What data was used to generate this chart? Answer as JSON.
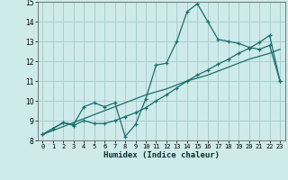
{
  "xlabel": "Humidex (Indice chaleur)",
  "background_color": "#ceeaea",
  "grid_color": "#aacece",
  "line_color": "#1a6e6a",
  "x_data": [
    0,
    1,
    2,
    3,
    4,
    5,
    6,
    7,
    8,
    9,
    10,
    11,
    12,
    13,
    14,
    15,
    16,
    17,
    18,
    19,
    20,
    21,
    22,
    23
  ],
  "line1_y": [
    8.3,
    8.6,
    8.9,
    8.8,
    9.7,
    9.9,
    9.7,
    9.9,
    8.2,
    8.8,
    10.1,
    11.8,
    11.9,
    13.0,
    14.5,
    14.9,
    14.0,
    13.1,
    13.0,
    12.9,
    12.7,
    12.6,
    12.8,
    11.0
  ],
  "line2_y": [
    8.3,
    8.6,
    8.9,
    8.75,
    9.0,
    8.85,
    8.85,
    9.0,
    9.2,
    9.4,
    9.65,
    10.0,
    10.3,
    10.65,
    11.0,
    11.3,
    11.55,
    11.85,
    12.1,
    12.4,
    12.65,
    12.95,
    13.3,
    11.0
  ],
  "line3_y": [
    8.3,
    8.5,
    8.7,
    8.9,
    9.1,
    9.3,
    9.5,
    9.7,
    9.9,
    10.1,
    10.3,
    10.45,
    10.6,
    10.8,
    11.0,
    11.15,
    11.3,
    11.5,
    11.7,
    11.9,
    12.1,
    12.25,
    12.4,
    12.6
  ],
  "ylim": [
    8,
    15
  ],
  "xlim": [
    -0.5,
    23.5
  ],
  "yticks": [
    8,
    9,
    10,
    11,
    12,
    13,
    14,
    15
  ],
  "xticks": [
    0,
    1,
    2,
    3,
    4,
    5,
    6,
    7,
    8,
    9,
    10,
    11,
    12,
    13,
    14,
    15,
    16,
    17,
    18,
    19,
    20,
    21,
    22,
    23
  ]
}
